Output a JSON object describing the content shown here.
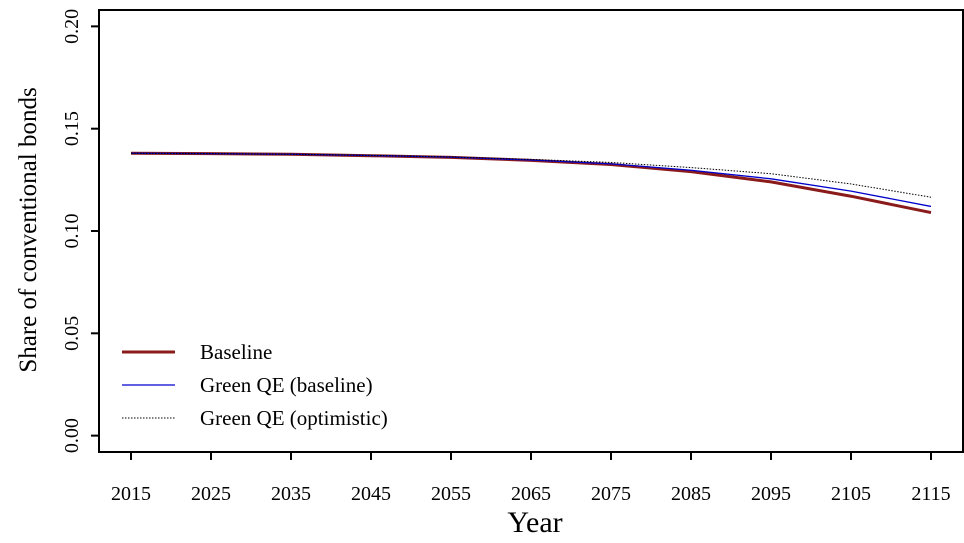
{
  "chart_data": {
    "type": "line",
    "x_label": "Year",
    "y_label": "Share of conventional bonds",
    "x": [
      2015,
      2025,
      2035,
      2045,
      2055,
      2065,
      2075,
      2085,
      2095,
      2105,
      2115
    ],
    "series": [
      {
        "name": "Baseline",
        "color": "#8b1a1a",
        "style": "solid",
        "width": 3,
        "values": [
          0.138,
          0.1378,
          0.1375,
          0.1368,
          0.136,
          0.1345,
          0.1325,
          0.129,
          0.124,
          0.117,
          0.109
        ]
      },
      {
        "name": "Green QE (baseline)",
        "color": "#0000cd",
        "style": "solid",
        "width": 1.3,
        "values": [
          0.138,
          0.1378,
          0.1375,
          0.1369,
          0.1361,
          0.1347,
          0.1328,
          0.1297,
          0.1255,
          0.1195,
          0.112
        ]
      },
      {
        "name": "Green QE (optimistic)",
        "color": "#000000",
        "style": "dotted",
        "width": 1,
        "values": [
          0.138,
          0.1378,
          0.1375,
          0.137,
          0.1362,
          0.135,
          0.1335,
          0.131,
          0.128,
          0.123,
          0.1165
        ]
      }
    ],
    "xlim": [
      2011,
      2119
    ],
    "xticks": [
      2015,
      2025,
      2035,
      2045,
      2055,
      2065,
      2075,
      2085,
      2095,
      2105,
      2115
    ],
    "ylim": [
      -0.008,
      0.208
    ],
    "yticks": [
      {
        "value": 0,
        "label": "0.00"
      },
      {
        "value": 0.05,
        "label": "0.05"
      },
      {
        "value": 0.1,
        "label": "0.10"
      },
      {
        "value": 0.15,
        "label": "0.15"
      },
      {
        "value": 0.2,
        "label": "0.20"
      }
    ],
    "legend": "bottom-left"
  }
}
